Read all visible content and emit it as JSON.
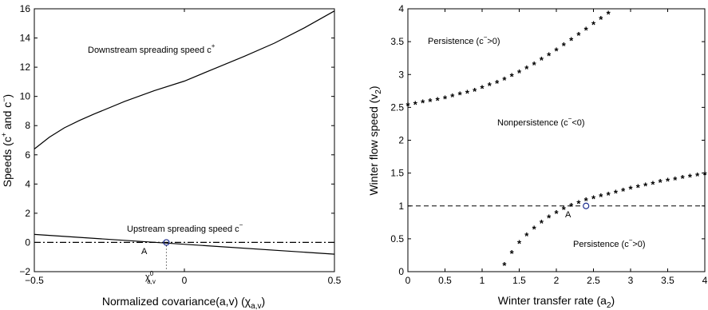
{
  "chart_data": [
    {
      "type": "line",
      "xlabel": "Normalized covariance(a,v) (χ",
      "xlabel_sub": "a,v",
      "xlabel_close": ")",
      "ylabel": "Speeds (c",
      "ylabel_sup1": "+",
      "ylabel_mid": " and c",
      "ylabel_sup2": "−",
      "ylabel_close": ")",
      "xlim": [
        -0.5,
        0.5
      ],
      "ylim": [
        -2,
        16
      ],
      "xticks": [
        "−0.5",
        "0",
        "0.5"
      ],
      "yticks": [
        "−2",
        "0",
        "2",
        "4",
        "6",
        "8",
        "10",
        "12",
        "14",
        "16"
      ],
      "series": [
        {
          "name": "Downstream spreading speed c+",
          "x": [
            -0.5,
            -0.45,
            -0.4,
            -0.35,
            -0.3,
            -0.2,
            -0.1,
            0,
            0.1,
            0.2,
            0.3,
            0.4,
            0.5
          ],
          "y": [
            6.4,
            7.2,
            7.85,
            8.35,
            8.8,
            9.65,
            10.4,
            11.05,
            11.9,
            12.75,
            13.65,
            14.7,
            15.85
          ]
        },
        {
          "name": "Upstream spreading speed c−",
          "x": [
            -0.5,
            0.5
          ],
          "y": [
            0.55,
            -0.8
          ]
        },
        {
          "name": "zero line",
          "style": "dash-dot",
          "x": [
            -0.5,
            0.5
          ],
          "y": [
            0,
            0
          ]
        }
      ],
      "annotations": {
        "downstream": "Downstream spreading speed c",
        "downstream_sup": "+",
        "upstream": "Upstream spreading speed c",
        "upstream_sup": "−",
        "point_label": "A",
        "point": {
          "x": -0.06,
          "y": 0
        },
        "chi_label": "χ",
        "chi_sup": "0",
        "chi_sub": "a,v"
      }
    },
    {
      "type": "scatter",
      "xlabel": "Winter transfer rate (a",
      "xlabel_sub": "2",
      "xlabel_close": ")",
      "ylabel": "Winter flow speed (v",
      "ylabel_sub": "2",
      "ylabel_close": ")",
      "xlim": [
        0,
        4
      ],
      "ylim": [
        0,
        4
      ],
      "xticks": [
        "0",
        "0.5",
        "1",
        "1.5",
        "2",
        "2.5",
        "3",
        "3.5",
        "4"
      ],
      "yticks": [
        "0",
        "0.5",
        "1",
        "1.5",
        "2",
        "2.5",
        "3",
        "3.5",
        "4"
      ],
      "upper_curve": {
        "x": [
          0,
          0.1,
          0.2,
          0.3,
          0.4,
          0.5,
          0.6,
          0.7,
          0.8,
          0.9,
          1.0,
          1.1,
          1.2,
          1.3,
          1.4,
          1.5,
          1.6,
          1.7,
          1.8,
          1.9,
          2.0,
          2.1,
          2.2,
          2.3,
          2.4,
          2.5,
          2.6,
          2.7
        ],
        "y": [
          2.53,
          2.55,
          2.57,
          2.59,
          2.61,
          2.63,
          2.66,
          2.69,
          2.72,
          2.75,
          2.79,
          2.83,
          2.87,
          2.92,
          2.97,
          3.03,
          3.09,
          3.15,
          3.22,
          3.29,
          3.36,
          3.44,
          3.52,
          3.6,
          3.68,
          3.76,
          3.84,
          3.92
        ]
      },
      "lower_curve": {
        "x": [
          1.3,
          1.4,
          1.5,
          1.6,
          1.7,
          1.8,
          1.9,
          2.0,
          2.1,
          2.2,
          2.3,
          2.4,
          2.5,
          2.6,
          2.7,
          2.8,
          2.9,
          3.0,
          3.1,
          3.2,
          3.3,
          3.4,
          3.5,
          3.6,
          3.7,
          3.8,
          3.9,
          4.0
        ],
        "y": [
          0.1,
          0.28,
          0.43,
          0.55,
          0.65,
          0.74,
          0.82,
          0.89,
          0.95,
          1.0,
          1.04,
          1.08,
          1.11,
          1.14,
          1.17,
          1.2,
          1.23,
          1.26,
          1.28,
          1.31,
          1.33,
          1.36,
          1.38,
          1.4,
          1.42,
          1.44,
          1.46,
          1.48
        ]
      },
      "dashed_line_y": 1,
      "annotations": {
        "persistence_top": "Persistence (c",
        "persistence_top_sup": "−",
        "persistence_top_close": ">0)",
        "nonpersistence": "Nonpersistence (c",
        "nonpersistence_sup": "−",
        "nonpersistence_close": "<0)",
        "persistence_bottom": "Persistence (c",
        "persistence_bottom_sup": "−",
        "persistence_bottom_close": ">0)",
        "point_label": "A",
        "point": {
          "x": 2.4,
          "y": 1.0
        }
      }
    }
  ]
}
